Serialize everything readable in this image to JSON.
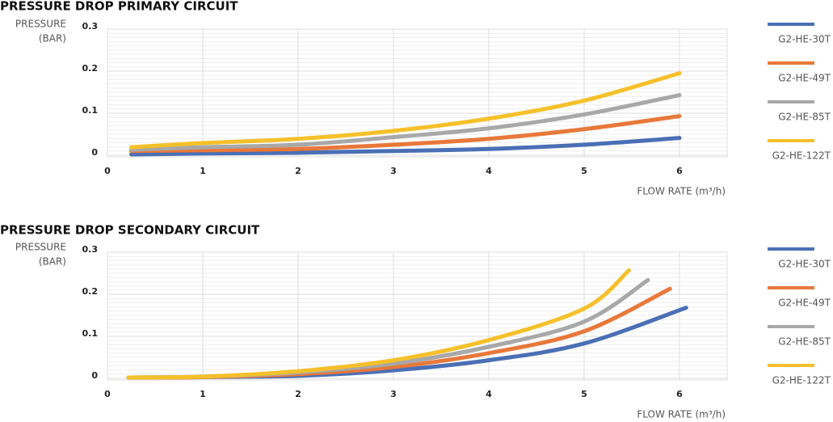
{
  "chart_data": [
    {
      "type": "line",
      "title": "PRESSURE DROP PRIMARY CIRCUIT",
      "ylabel": [
        "PRESSURE",
        "(BAR)"
      ],
      "xlabel": "FLOW RATE (m³/h)",
      "xlim": [
        0,
        6.5
      ],
      "xticks": [
        0,
        1,
        2,
        3,
        4,
        5,
        6
      ],
      "ylim": [
        0,
        0.3
      ],
      "yticks": [
        0,
        0.1,
        0.2,
        0.3
      ],
      "grid": true,
      "legend": "right",
      "series": [
        {
          "name": "G2-HE-30T",
          "color": "#4a6fb5",
          "x": [
            0.25,
            1,
            2,
            3,
            4,
            5,
            6
          ],
          "values": [
            0.002,
            0.004,
            0.006,
            0.01,
            0.015,
            0.025,
            0.041
          ]
        },
        {
          "name": "G2-HE-49T",
          "color": "#e8783a",
          "x": [
            0.25,
            1,
            2,
            3,
            4,
            5,
            6
          ],
          "values": [
            0.01,
            0.012,
            0.015,
            0.025,
            0.039,
            0.062,
            0.093
          ]
        },
        {
          "name": "G2-HE-85T",
          "color": "#a8a8a8",
          "x": [
            0.25,
            1,
            2,
            3,
            4,
            5,
            6
          ],
          "values": [
            0.013,
            0.019,
            0.025,
            0.043,
            0.064,
            0.097,
            0.143
          ]
        },
        {
          "name": "G2-HE-122T",
          "color": "#f5c02a",
          "x": [
            0.25,
            1,
            2,
            3,
            4,
            5,
            6
          ],
          "values": [
            0.019,
            0.029,
            0.039,
            0.058,
            0.087,
            0.13,
            0.195
          ]
        }
      ]
    },
    {
      "type": "line",
      "title": "PRESSURE DROP SECONDARY CIRCUIT",
      "ylabel": [
        "PRESSURE",
        "(BAR)"
      ],
      "xlabel": "FLOW RATE (m³/h)",
      "xlim": [
        0,
        6.5
      ],
      "xticks": [
        0,
        1,
        2,
        3,
        4,
        5,
        6
      ],
      "ylim": [
        0,
        0.3
      ],
      "yticks": [
        0,
        0.1,
        0.2,
        0.3
      ],
      "grid": true,
      "legend": "right",
      "series": [
        {
          "name": "G2-HE-30T",
          "color": "#4a6fb5",
          "x": [
            0.22,
            1,
            2,
            3,
            4,
            5,
            6.07
          ],
          "values": [
            0.002,
            0.003,
            0.006,
            0.019,
            0.043,
            0.083,
            0.168
          ]
        },
        {
          "name": "G2-HE-49T",
          "color": "#e8783a",
          "x": [
            0.22,
            1,
            2,
            3,
            4,
            5,
            5.9
          ],
          "values": [
            0.002,
            0.003,
            0.01,
            0.027,
            0.06,
            0.112,
            0.213
          ]
        },
        {
          "name": "G2-HE-85T",
          "color": "#a8a8a8",
          "x": [
            0.22,
            1,
            2,
            3,
            4,
            5,
            5.67
          ],
          "values": [
            0.002,
            0.004,
            0.014,
            0.035,
            0.075,
            0.135,
            0.234
          ]
        },
        {
          "name": "G2-HE-122T",
          "color": "#f5c02a",
          "x": [
            0.22,
            1,
            2,
            3,
            4,
            5,
            5.47
          ],
          "values": [
            0.002,
            0.004,
            0.017,
            0.043,
            0.091,
            0.166,
            0.257
          ]
        }
      ]
    }
  ]
}
